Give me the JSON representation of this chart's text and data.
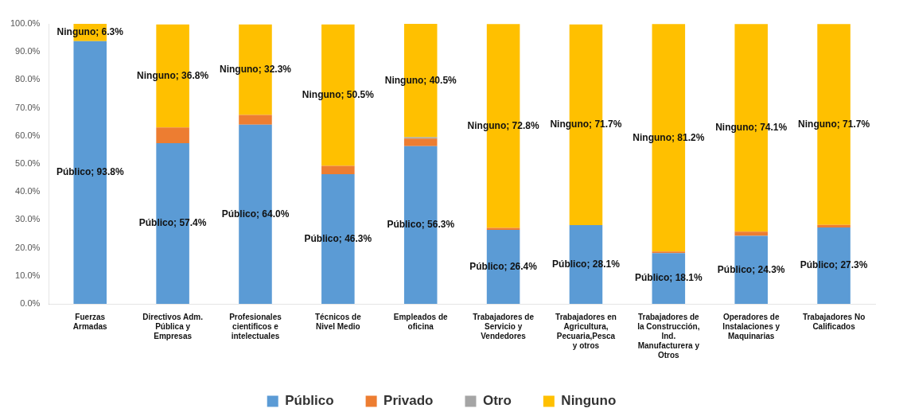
{
  "chart_data": {
    "type": "bar",
    "stacked": true,
    "categories": [
      "Fuerzas Armadas",
      "Directivos Adm. Pública y Empresas",
      "Profesionales cientificos e intelectuales",
      "Técnicos de Nivel Medio",
      "Empleados de oficina",
      "Trabajadores de Servicio y Vendedores",
      "Trabajadores en Agricultura, Pecuaria,Pesca y otros",
      "Trabajadores de la Construcción, Ind. Manufacturera y Otros",
      "Operadores de Instalaciones y Maquinarias",
      "Trabajadores No Calificados"
    ],
    "series": [
      {
        "name": "Público",
        "color": "#5b9bd5",
        "values": [
          93.8,
          57.4,
          64.0,
          46.3,
          56.3,
          26.4,
          28.1,
          18.1,
          24.3,
          27.3
        ],
        "value_labels": [
          "Público; 93.8%",
          "Público; 57.4%",
          "Público; 64.0%",
          "Público; 46.3%",
          "Público; 56.3%",
          "Público; 26.4%",
          "Público; 28.1%",
          "Público; 18.1%",
          "Público; 24.3%",
          "Público; 27.3%"
        ]
      },
      {
        "name": "Privado",
        "color": "#ed7d31",
        "values": [
          null,
          5.6,
          3.5,
          3.0,
          2.7,
          0.7,
          null,
          0.6,
          1.5,
          0.9
        ]
      },
      {
        "name": "Otro",
        "color": "#a5a5a5",
        "values": [
          null,
          null,
          null,
          null,
          0.5,
          null,
          null,
          null,
          null,
          null
        ]
      },
      {
        "name": "Ninguno",
        "color": "#ffc000",
        "values": [
          6.3,
          36.8,
          32.3,
          50.5,
          40.5,
          72.8,
          71.7,
          81.2,
          74.1,
          71.7
        ],
        "value_labels": [
          "Ninguno; 6.3%",
          "Ninguno; 36.8%",
          "Ninguno; 32.3%",
          "Ninguno; 50.5%",
          "Ninguno; 40.5%",
          "Ninguno; 72.8%",
          "Ninguno; 71.7%",
          "Ninguno; 81.2%",
          "Ninguno; 74.1%",
          "Ninguno; 71.7%"
        ]
      }
    ],
    "ylim": [
      0,
      100
    ],
    "yticks": [
      {
        "value": 0,
        "label": "0.0%"
      },
      {
        "value": 10,
        "label": "10.0%"
      },
      {
        "value": 20,
        "label": "20.0%"
      },
      {
        "value": 30,
        "label": "30.0%"
      },
      {
        "value": 40,
        "label": "40.0%"
      },
      {
        "value": 50,
        "label": "50.0%"
      },
      {
        "value": 60,
        "label": "60.0%"
      },
      {
        "value": 70,
        "label": "70.0%"
      },
      {
        "value": 80,
        "label": "80.0%"
      },
      {
        "value": 90,
        "label": "90.0%"
      },
      {
        "value": 100,
        "label": "100.0%"
      }
    ],
    "grid": false,
    "legend": "bottom"
  }
}
